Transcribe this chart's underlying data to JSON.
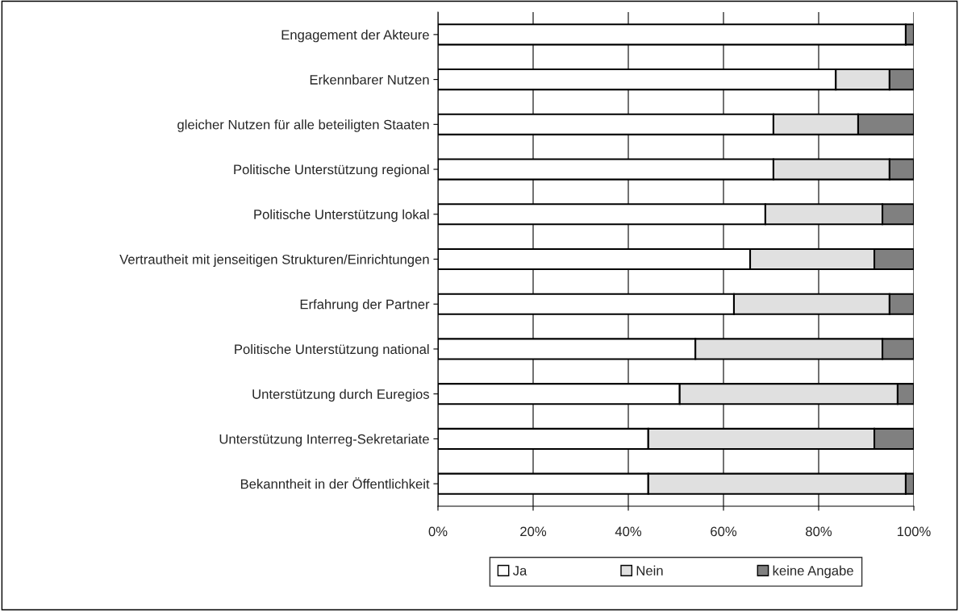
{
  "chart_data": {
    "type": "bar",
    "orientation": "horizontal",
    "stacked": true,
    "categories": [
      "Engagement der Akteure",
      "Erkennbarer Nutzen",
      "gleicher Nutzen für alle beteiligten Staaten",
      "Politische Unterstützung regional",
      "Politische Unterstützung lokal",
      "Vertrautheit mit jenseitigen Strukturen/Einrichtungen",
      "Erfahrung der Partner",
      "Politische Unterstützung national",
      "Unterstützung durch Euregios",
      "Unterstützung Interreg-Sekretariate",
      "Bekanntheit in der Öffentlichkeit"
    ],
    "series": [
      {
        "name": "Ja",
        "color": "#ffffff",
        "values": [
          98.3,
          83.6,
          70.5,
          70.5,
          68.8,
          65.6,
          62.2,
          54.1,
          50.8,
          44.2,
          44.2
        ]
      },
      {
        "name": "Nein",
        "color": "#e0e0e0",
        "values": [
          null,
          11.3,
          17.8,
          24.4,
          24.6,
          26.1,
          32.7,
          39.3,
          45.8,
          47.5,
          54.1
        ]
      },
      {
        "name": "keine Angabe",
        "color": "#808080",
        "values": [
          1.7,
          5.1,
          11.7,
          5.1,
          6.6,
          8.3,
          5.1,
          6.6,
          3.4,
          8.3,
          1.7
        ]
      }
    ],
    "xlim": [
      0,
      100
    ],
    "xticks": [
      {
        "value": 0,
        "label": "0%"
      },
      {
        "value": 20,
        "label": "20%"
      },
      {
        "value": 40,
        "label": "40%"
      },
      {
        "value": 60,
        "label": "60%"
      },
      {
        "value": 80,
        "label": "80%"
      },
      {
        "value": 100,
        "label": "100%"
      }
    ],
    "grid": "x",
    "legend": "bottom"
  }
}
